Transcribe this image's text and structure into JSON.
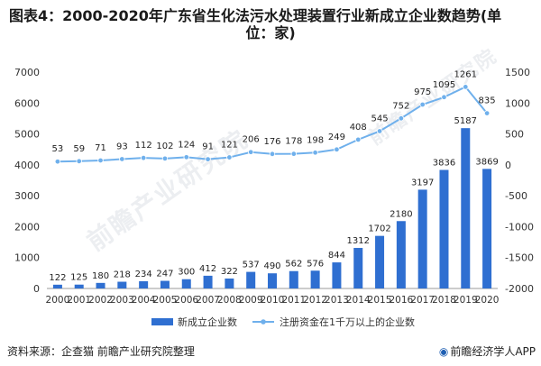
{
  "title": {
    "line1": "图表4：2000-2020年广东省生化法污水处理装置行业新成立企业数趋势(单",
    "line2": "位：家)"
  },
  "watermark": "前瞻产业研究院",
  "source": "资料来源：企查猫 前瞻产业研究院整理",
  "brand": {
    "logo": "◉",
    "text": "前瞻经济学人APP"
  },
  "colors": {
    "bar": "#2f6fd1",
    "line": "#6fb0ec",
    "point": "#6fb0ec",
    "grid": "#e6e6e6"
  },
  "chart_data": {
    "type": "bar",
    "categories": [
      "2000",
      "2001",
      "2002",
      "2003",
      "2004",
      "2005",
      "2006",
      "2007",
      "2008",
      "2009",
      "2010",
      "2011",
      "2012",
      "2013",
      "2014",
      "2015",
      "2016",
      "2017",
      "2018",
      "2019",
      "2020"
    ],
    "series": [
      {
        "name": "新成立企业数",
        "type": "bar",
        "axis": "left",
        "values": [
          122,
          125,
          180,
          218,
          234,
          247,
          300,
          412,
          322,
          537,
          490,
          562,
          576,
          844,
          1312,
          1702,
          2180,
          3197,
          3836,
          5187,
          3869
        ]
      },
      {
        "name": "注册资金在1千万以上的企业数",
        "type": "line",
        "axis": "right",
        "values": [
          53,
          59,
          71,
          93,
          112,
          102,
          124,
          91,
          121,
          206,
          176,
          178,
          198,
          249,
          408,
          545,
          752,
          975,
          1095,
          1261,
          835
        ]
      }
    ],
    "left_axis": {
      "ylim": [
        0,
        7000
      ],
      "ticks": [
        "0",
        "1000",
        "2000",
        "3000",
        "4000",
        "5000",
        "6000",
        "7000"
      ]
    },
    "right_axis": {
      "ylim": [
        -2000,
        1500
      ],
      "ticks": [
        "-2000",
        "-1500",
        "-1000",
        "-500",
        "0",
        "500",
        "1000",
        "1500"
      ]
    },
    "legend": {
      "placement": "bottom"
    },
    "grid": false
  }
}
